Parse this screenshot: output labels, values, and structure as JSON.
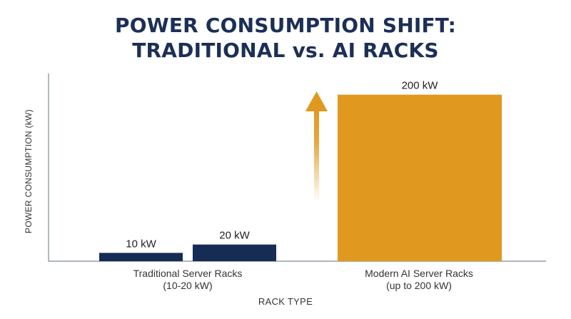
{
  "chart_data": {
    "type": "bar",
    "title_lines": [
      "POWER CONSUMPTION SHIFT:",
      "TRADITIONAL vs. AI RACKS"
    ],
    "xlabel": "RACK TYPE",
    "ylabel": "POWER CONSUMPTION (kW)",
    "ylim": [
      0,
      210
    ],
    "grid": false,
    "groups": [
      {
        "label_lines": [
          "Traditional Server Racks",
          "(10-20 kW)"
        ]
      },
      {
        "label_lines": [
          "Modern AI Server Racks",
          "(up to 200 kW)"
        ]
      }
    ],
    "bars": [
      {
        "group": 0,
        "value": 10,
        "label": "10 kW"
      },
      {
        "group": 0,
        "value": 20,
        "label": "20 kW"
      },
      {
        "group": 1,
        "value": 200,
        "label": "200 kW"
      }
    ],
    "colors": {
      "traditional": "#162c55",
      "ai": "#e0981f",
      "title": "#1b2f57",
      "axis": "#7d8a99"
    },
    "annotation": {
      "type": "arrow-up",
      "icon": "up-arrow-icon"
    }
  }
}
